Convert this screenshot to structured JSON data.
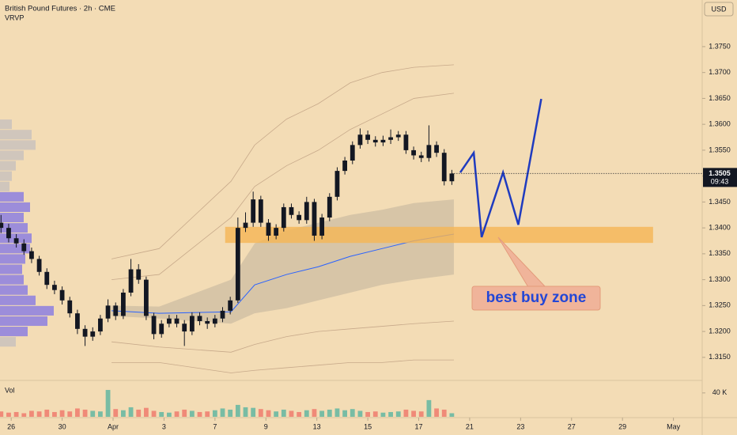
{
  "chart_data": {
    "type": "candlestick",
    "title": "British Pound Futures · 2h · CME",
    "indicator": "VRVP",
    "currency": "USD",
    "volume_label": "Vol",
    "background": "#f3dcb5",
    "up_color": "#131722",
    "down_color": "#131722",
    "xlim": [
      -0.44,
      27.13
    ],
    "xticks": [
      {
        "value": 0,
        "label": "26"
      },
      {
        "value": 2,
        "label": "30"
      },
      {
        "value": 4,
        "label": "Apr"
      },
      {
        "value": 6,
        "label": "3"
      },
      {
        "value": 8,
        "label": "7"
      },
      {
        "value": 10,
        "label": "9"
      },
      {
        "value": 12,
        "label": "13"
      },
      {
        "value": 14,
        "label": "15"
      },
      {
        "value": 16,
        "label": "17"
      },
      {
        "value": 18,
        "label": "21"
      },
      {
        "value": 20,
        "label": "23"
      },
      {
        "value": 22,
        "label": "27"
      },
      {
        "value": 24,
        "label": "29"
      },
      {
        "value": 26,
        "label": "May"
      }
    ],
    "ylim": [
      1.3107,
      1.384
    ],
    "yticks": [
      {
        "value": 1.315,
        "label": "1.3150"
      },
      {
        "value": 1.32,
        "label": "1.3200"
      },
      {
        "value": 1.325,
        "label": "1.3250"
      },
      {
        "value": 1.33,
        "label": "1.3300"
      },
      {
        "value": 1.335,
        "label": "1.3350"
      },
      {
        "value": 1.34,
        "label": "1.3400"
      },
      {
        "value": 1.345,
        "label": "1.3450"
      },
      {
        "value": 1.35,
        "label": "1.3500"
      },
      {
        "value": 1.355,
        "label": "1.3550"
      },
      {
        "value": 1.36,
        "label": "1.3600"
      },
      {
        "value": 1.365,
        "label": "1.3650"
      },
      {
        "value": 1.37,
        "label": "1.3700"
      },
      {
        "value": 1.375,
        "label": "1.3750"
      }
    ],
    "x": [
      -0.4,
      -0.1,
      0.2,
      0.5,
      0.8,
      1.1,
      1.4,
      1.7,
      2.0,
      2.3,
      2.6,
      2.9,
      3.2,
      3.5,
      3.8,
      4.1,
      4.4,
      4.7,
      5.0,
      5.3,
      5.6,
      5.9,
      6.2,
      6.5,
      6.8,
      7.1,
      7.4,
      7.7,
      8.0,
      8.3,
      8.6,
      8.9,
      9.2,
      9.5,
      9.8,
      10.1,
      10.4,
      10.7,
      11.0,
      11.3,
      11.6,
      11.9,
      12.2,
      12.5,
      12.8,
      13.1,
      13.4,
      13.7,
      14.0,
      14.3,
      14.6,
      14.9,
      15.2,
      15.5,
      15.8,
      16.1,
      16.4,
      16.7,
      17.0,
      17.3
    ],
    "open": [
      1.341,
      1.34,
      1.338,
      1.337,
      1.3355,
      1.334,
      1.3315,
      1.329,
      1.328,
      1.326,
      1.3235,
      1.3205,
      1.319,
      1.32,
      1.3225,
      1.325,
      1.323,
      1.3275,
      1.332,
      1.33,
      1.323,
      1.3195,
      1.3215,
      1.3225,
      1.3215,
      1.32,
      1.323,
      1.322,
      1.3215,
      1.3225,
      1.324,
      1.326,
      1.34,
      1.341,
      1.3455,
      1.341,
      1.3385,
      1.34,
      1.344,
      1.3425,
      1.3415,
      1.345,
      1.3385,
      1.342,
      1.346,
      1.351,
      1.353,
      1.356,
      1.358,
      1.357,
      1.3565,
      1.357,
      1.3575,
      1.358,
      1.355,
      1.354,
      1.3535,
      1.356,
      1.3545,
      1.349
    ],
    "high": [
      1.3425,
      1.3408,
      1.3388,
      1.3378,
      1.3362,
      1.3346,
      1.3322,
      1.3298,
      1.3287,
      1.3267,
      1.3242,
      1.3212,
      1.3208,
      1.3232,
      1.3262,
      1.3256,
      1.3282,
      1.334,
      1.333,
      1.3306,
      1.3236,
      1.3222,
      1.3232,
      1.3232,
      1.3222,
      1.3237,
      1.3237,
      1.3227,
      1.3232,
      1.3247,
      1.3267,
      1.342,
      1.343,
      1.347,
      1.3462,
      1.3417,
      1.3407,
      1.3447,
      1.3447,
      1.3432,
      1.346,
      1.3456,
      1.3427,
      1.3467,
      1.3517,
      1.3537,
      1.3567,
      1.3592,
      1.3588,
      1.3577,
      1.3578,
      1.359,
      1.3587,
      1.3587,
      1.3557,
      1.3547,
      1.3598,
      1.3567,
      1.3552,
      1.3512
    ],
    "low": [
      1.339,
      1.3372,
      1.3362,
      1.3348,
      1.3332,
      1.3308,
      1.3282,
      1.3272,
      1.3252,
      1.3227,
      1.3195,
      1.3172,
      1.3182,
      1.3193,
      1.3218,
      1.3222,
      1.3224,
      1.3268,
      1.3292,
      1.3222,
      1.3185,
      1.3188,
      1.3208,
      1.3208,
      1.3172,
      1.3193,
      1.3212,
      1.3205,
      1.3208,
      1.3218,
      1.3233,
      1.3255,
      1.3392,
      1.3402,
      1.3402,
      1.3375,
      1.3378,
      1.3393,
      1.3418,
      1.3408,
      1.3408,
      1.3375,
      1.3378,
      1.3413,
      1.3453,
      1.3503,
      1.3523,
      1.3553,
      1.3562,
      1.3557,
      1.3558,
      1.3562,
      1.3568,
      1.3543,
      1.3532,
      1.3527,
      1.3528,
      1.3537,
      1.3482,
      1.3483
    ],
    "close": [
      1.34,
      1.338,
      1.337,
      1.3355,
      1.334,
      1.3315,
      1.329,
      1.328,
      1.326,
      1.3235,
      1.3205,
      1.319,
      1.32,
      1.3225,
      1.325,
      1.323,
      1.3275,
      1.332,
      1.33,
      1.323,
      1.3195,
      1.3215,
      1.3225,
      1.3215,
      1.32,
      1.323,
      1.322,
      1.3215,
      1.3225,
      1.324,
      1.326,
      1.34,
      1.341,
      1.3455,
      1.341,
      1.3385,
      1.34,
      1.344,
      1.3425,
      1.3415,
      1.345,
      1.3385,
      1.342,
      1.346,
      1.351,
      1.353,
      1.356,
      1.358,
      1.357,
      1.3565,
      1.357,
      1.3575,
      1.358,
      1.355,
      1.354,
      1.3535,
      1.356,
      1.3545,
      1.349,
      1.3505
    ],
    "volume": [
      9000,
      7000,
      8000,
      6000,
      10000,
      9000,
      12000,
      8000,
      11000,
      9000,
      14000,
      12000,
      10000,
      9000,
      45000,
      13000,
      11000,
      16000,
      12000,
      15000,
      10000,
      8000,
      7000,
      9000,
      12000,
      10000,
      8000,
      9000,
      11000,
      14000,
      12000,
      20000,
      16000,
      15000,
      13000,
      11000,
      9000,
      12000,
      10000,
      8000,
      11000,
      13000,
      10000,
      12000,
      14000,
      11000,
      13000,
      10000,
      8000,
      9000,
      7000,
      8000,
      9000,
      12000,
      10000,
      9000,
      28000,
      14000,
      12000,
      6000
    ],
    "volume_colors": [
      "#26a69a",
      "#ef5350"
    ],
    "volume_ylim": [
      0,
      53000
    ],
    "volume_yticks": [
      {
        "value": 40000,
        "label": "40 K"
      }
    ],
    "last_price": 1.3505,
    "countdown": "09:43",
    "profile": {
      "xlim": [
        0,
        100
      ],
      "prices": [
        1.318,
        1.32,
        1.322,
        1.324,
        1.326,
        1.328,
        1.33,
        1.332,
        1.334,
        1.336,
        1.338,
        1.34,
        1.342,
        1.344,
        1.346,
        1.348,
        1.35,
        1.352,
        1.354,
        1.356,
        1.358,
        1.36
      ],
      "values": [
        20,
        35,
        60,
        68,
        45,
        35,
        30,
        28,
        32,
        38,
        40,
        35,
        30,
        38,
        30,
        12,
        15,
        20,
        30,
        45,
        40,
        15
      ],
      "colors": [
        "#c9c2bd",
        "#8c7fe0",
        "#8c7fe0",
        "#8c7fe0",
        "#8c7fe0",
        "#8c7fe0",
        "#8c7fe0",
        "#8c7fe0",
        "#8c7fe0",
        "#8c7fe0",
        "#8c7fe0",
        "#8c7fe0",
        "#8c7fe0",
        "#8c7fe0",
        "#8c7fe0",
        "#c9c2bd",
        "#c9c2bd",
        "#c9c2bd",
        "#c9c2bd",
        "#c9c2bd",
        "#c9c2bd",
        "#c9c2bd"
      ]
    },
    "vwap": {
      "x": [
        3.94,
        5.81,
        8.63,
        9.56,
        10.81,
        12.06,
        13.31,
        14.56,
        15.81,
        17.38
      ],
      "shade_color": "rgba(120,120,120,0.22)",
      "lines": [
        {
          "color": "#2962ff",
          "values": [
            1.324,
            1.3235,
            1.3238,
            1.329,
            1.331,
            1.3325,
            1.3345,
            1.336,
            1.3375,
            1.3388
          ]
        },
        {
          "color": "#c7a98a",
          "values": [
            1.33,
            1.331,
            1.342,
            1.348,
            1.352,
            1.355,
            1.359,
            1.362,
            1.365,
            1.366
          ]
        },
        {
          "color": "#c7a98a",
          "values": [
            1.334,
            1.336,
            1.349,
            1.356,
            1.361,
            1.364,
            1.368,
            1.37,
            1.371,
            1.3715
          ]
        },
        {
          "color": "#c7a98a",
          "values": [
            1.318,
            1.317,
            1.316,
            1.3175,
            1.319,
            1.32,
            1.3205,
            1.321,
            1.3215,
            1.322
          ]
        },
        {
          "color": "#c7a98a",
          "values": [
            1.314,
            1.314,
            1.312,
            1.3125,
            1.313,
            1.3135,
            1.314,
            1.314,
            1.3145,
            1.3145
          ]
        }
      ],
      "upper": [
        1.325,
        1.3248,
        1.33,
        1.337,
        1.3395,
        1.341,
        1.3425,
        1.3435,
        1.3448,
        1.3455
      ],
      "lower": [
        1.323,
        1.3225,
        1.3215,
        1.3235,
        1.3245,
        1.326,
        1.3275,
        1.329,
        1.33,
        1.331
      ]
    },
    "zone": {
      "x": [
        8.4,
        25.2
      ],
      "y": [
        1.3371,
        1.3402
      ],
      "color": "#f5b555"
    },
    "projection": {
      "color": "#1f3bbf",
      "x": [
        17.63,
        18.16,
        18.47,
        19.31,
        19.91,
        20.81
      ],
      "values": [
        1.3507,
        1.3545,
        1.3382,
        1.3507,
        1.3406,
        1.3649
      ]
    },
    "annotation": "best buy zone"
  }
}
